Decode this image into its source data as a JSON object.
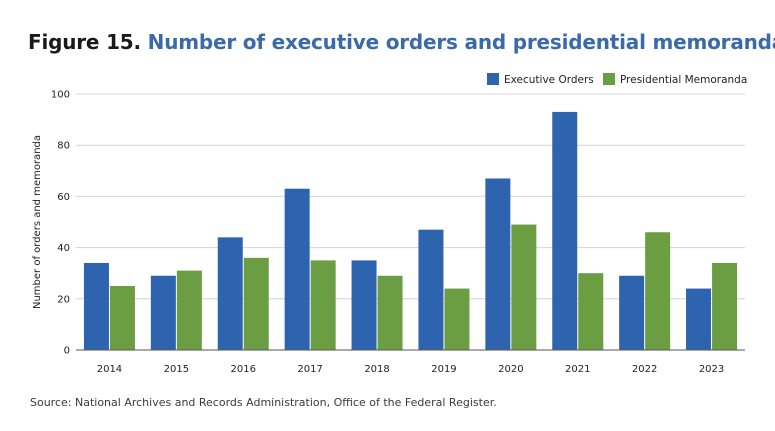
{
  "figure": {
    "label": "Figure 15.",
    "caption": "Number of executive orders and presidential memoranda",
    "source": "Source: National Archives and Records Administration, Office of the Federal Register."
  },
  "chart_data": {
    "type": "bar",
    "categories": [
      "2014",
      "2015",
      "2016",
      "2017",
      "2018",
      "2019",
      "2020",
      "2021",
      "2022",
      "2023"
    ],
    "series": [
      {
        "name": "Executive Orders",
        "color": "#2e63b0",
        "values": [
          34,
          29,
          44,
          63,
          35,
          47,
          67,
          93,
          29,
          24
        ]
      },
      {
        "name": "Presidential Memoranda",
        "color": "#6b9e43",
        "values": [
          25,
          31,
          36,
          35,
          29,
          24,
          49,
          30,
          46,
          34
        ]
      }
    ],
    "title": "Number of executive orders and presidential memoranda",
    "xlabel": "",
    "ylabel": "Number of orders and memoranda",
    "ylim": [
      0,
      100
    ],
    "yticks": [
      0,
      20,
      40,
      60,
      80,
      100
    ],
    "grid": true,
    "legend": "top-right"
  }
}
